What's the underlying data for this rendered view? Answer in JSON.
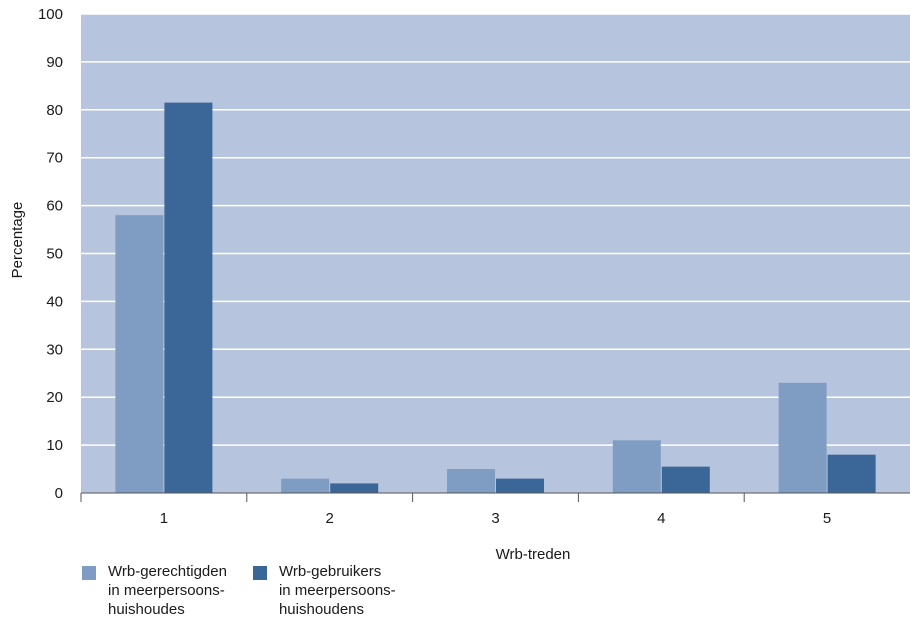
{
  "chart_data": {
    "type": "bar",
    "categories": [
      "1",
      "2",
      "3",
      "4",
      "5"
    ],
    "series": [
      {
        "name": "Wrb-gerechtigden\nin meerpersoons-\nhuishoudes",
        "values": [
          58,
          3,
          5,
          11,
          23
        ],
        "color": "#7f9cc2"
      },
      {
        "name": "Wrb-gebruikers\nin meerpersoons-\nhuishoudens",
        "values": [
          81.5,
          2,
          3,
          5.5,
          8
        ],
        "color": "#3a6698"
      }
    ],
    "title": "",
    "xlabel": "Wrb-treden",
    "ylabel": "Percentage",
    "ylim": [
      0,
      100
    ],
    "yticks": [
      "0",
      "10",
      "20",
      "30",
      "40",
      "50",
      "60",
      "70",
      "80",
      "90",
      "100"
    ],
    "grid": true,
    "legend_position": "bottom-left",
    "plot_background": "#b7c4de",
    "gridline_color": "#ffffff"
  }
}
